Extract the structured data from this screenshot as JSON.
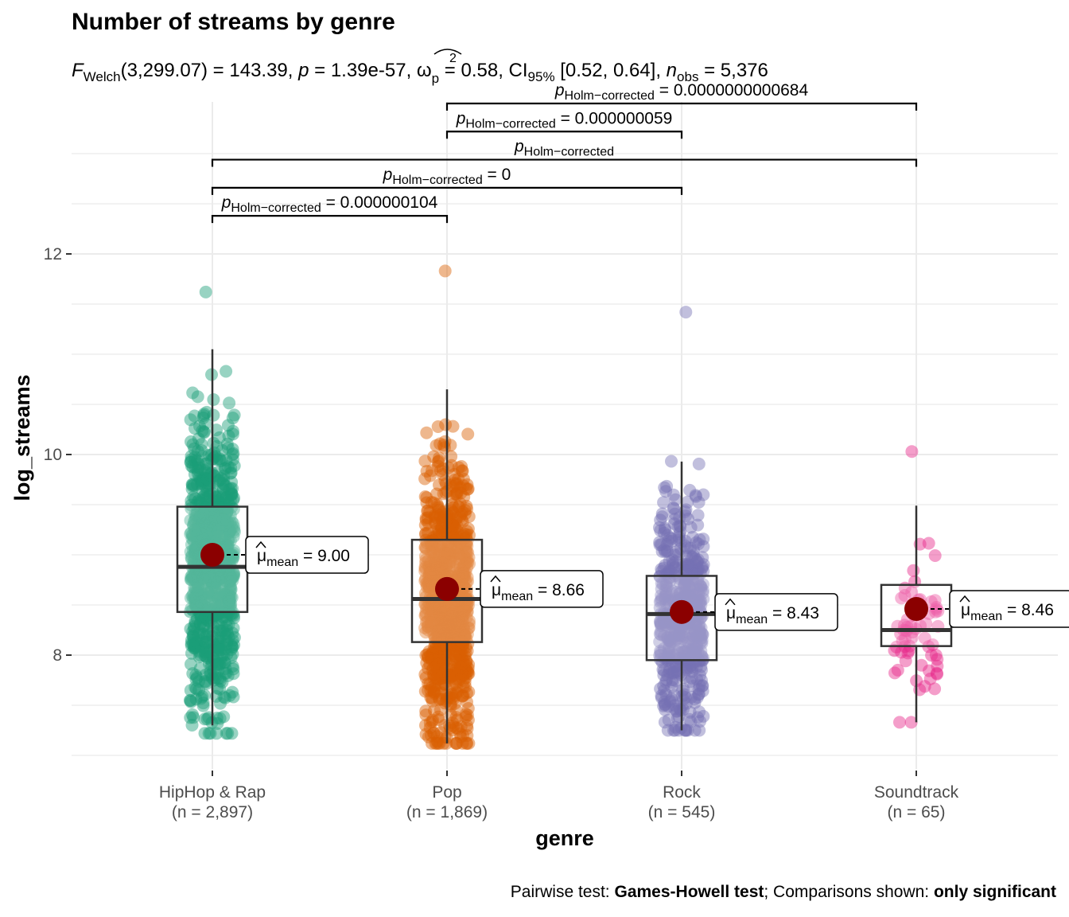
{
  "chart_data": {
    "type": "box",
    "title": "Number of streams by genre",
    "subtitle": {
      "F_sub": "Welch",
      "F_args": "(3,299.07) = 143.39, ",
      "p_text": " = 1.39e-57, ",
      "omega_sub": "p",
      "omega_val": " = 0.58, CI",
      "ci_sub": "95%",
      "ci_val": " [0.52, 0.64], ",
      "n_sub": "obs",
      "n_val": " = 5,376"
    },
    "xlabel": "genre",
    "ylabel": "log_streams",
    "ylim": [
      7.0,
      13.0
    ],
    "yticks": [
      8,
      10,
      12
    ],
    "grid": true,
    "categories": [
      "HipHop & Rap",
      "Pop",
      "Rock",
      "Soundtrack"
    ],
    "counts": [
      "(n = 2,897)",
      "(n = 1,869)",
      "(n = 545)",
      "(n = 65)"
    ],
    "colors": [
      "#1b9e77",
      "#d95f02",
      "#7570b3",
      "#e7298a"
    ],
    "mean_color": "#8b0000",
    "boxes": [
      {
        "min": 7.3,
        "q1": 8.43,
        "median": 8.88,
        "q3": 9.48,
        "max": 11.05,
        "mean": 9.0,
        "lo": 7.22,
        "hi": 11.62,
        "n": 2897
      },
      {
        "min": 7.12,
        "q1": 8.13,
        "median": 8.56,
        "q3": 9.15,
        "max": 10.65,
        "mean": 8.66,
        "lo": 7.12,
        "hi": 11.83,
        "n": 1869
      },
      {
        "min": 7.25,
        "q1": 7.95,
        "median": 8.41,
        "q3": 8.79,
        "max": 9.93,
        "mean": 8.43,
        "lo": 7.25,
        "hi": 11.42,
        "n": 545
      },
      {
        "min": 7.33,
        "q1": 8.09,
        "median": 8.25,
        "q3": 8.7,
        "max": 9.49,
        "mean": 8.46,
        "lo": 7.33,
        "hi": 10.03,
        "n": 65
      }
    ],
    "mean_labels": [
      "= 9.00",
      "= 8.66",
      "= 8.43",
      "= 8.46"
    ],
    "mean_sub": "mean",
    "comparisons": [
      {
        "from": 0,
        "to": 1,
        "y": 12.38,
        "sub": "Holm−corrected",
        "value": " = 0.000000104"
      },
      {
        "from": 0,
        "to": 2,
        "y": 12.66,
        "sub": "Holm−corrected",
        "value": " = 0"
      },
      {
        "from": 0,
        "to": 3,
        "y": 12.94,
        "sub": "Holm−corrected",
        "value": ""
      },
      {
        "from": 1,
        "to": 2,
        "y": 13.22,
        "sub": "Holm−corrected",
        "value": " = 0.000000059"
      },
      {
        "from": 1,
        "to": 3,
        "y": 13.5,
        "sub": "Holm−corrected",
        "value": " = 0.0000000000684"
      }
    ],
    "caption": {
      "prefix": "Pairwise test: ",
      "test": "Games-Howell test",
      "mid": "; Comparisons shown: ",
      "shown": "only significant"
    }
  }
}
